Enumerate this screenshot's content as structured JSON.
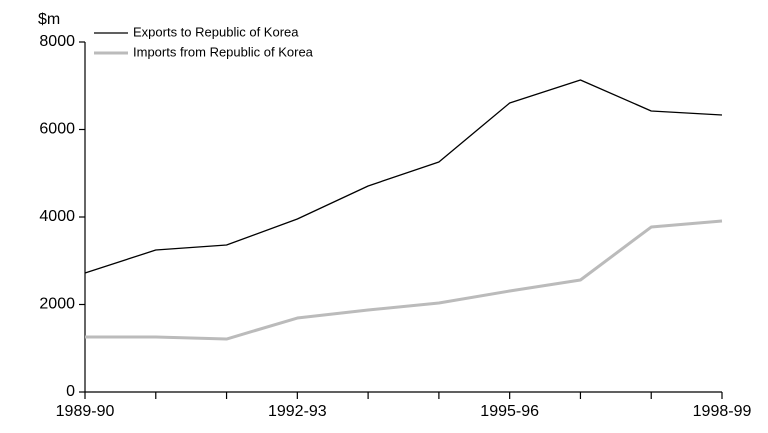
{
  "chart_data": {
    "type": "line",
    "y_axis_label": "$m",
    "categories": [
      "1989-90",
      null,
      null,
      "1992-93",
      null,
      null,
      "1995-96",
      null,
      null,
      "1998-99"
    ],
    "series": [
      {
        "name": "Exports to Republic of Korea",
        "color": "#000000",
        "width": 1.3,
        "values": [
          2720,
          3245,
          3360,
          3954,
          4709,
          5257,
          6606,
          7131,
          6423,
          6331
        ]
      },
      {
        "name": "Imports from Republic of Korea",
        "color": "#bbbbbb",
        "width": 3,
        "values": [
          1257,
          1257,
          1211,
          1691,
          1874,
          2034,
          2309,
          2560,
          3771,
          3909
        ]
      }
    ],
    "ylim": [
      0,
      8000
    ],
    "yticks": [
      0,
      2000,
      4000,
      6000,
      8000
    ],
    "legend": "top-left"
  }
}
